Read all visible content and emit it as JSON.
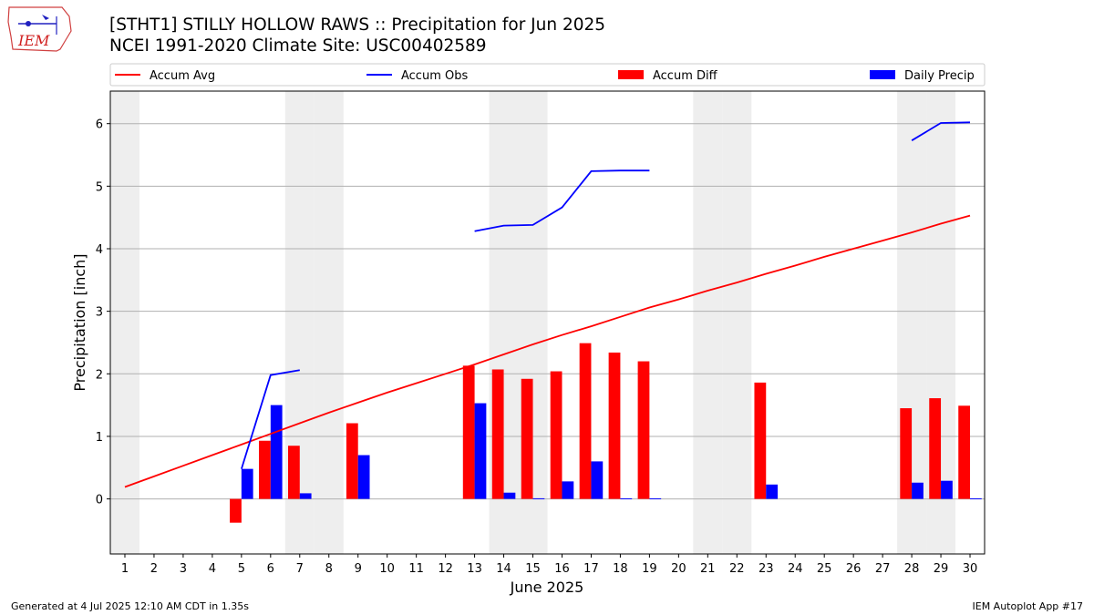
{
  "header": {
    "title": "[STHT1] STILLY HOLLOW RAWS :: Precipitation for Jun 2025",
    "subtitle": "NCEI 1991-2020 Climate Site: USC00402589",
    "logo_text": "IEM"
  },
  "footer": {
    "left": "Generated at 4 Jul 2025 12:10 AM CDT in 1.35s",
    "right": "IEM Autoplot App #17"
  },
  "colors": {
    "avg": "#ff0000",
    "obs": "#0000ff",
    "diff": "#ff0000",
    "daily": "#0000ff",
    "weekend_band": "#eeeeee",
    "grid": "#b0b0b0"
  },
  "chart_data": {
    "type": "bar",
    "title": "[STHT1] STILLY HOLLOW RAWS :: Precipitation for Jun 2025",
    "xlabel": "June 2025",
    "ylabel": "Precipitation [inch]",
    "ylim": [
      -0.88,
      6.52
    ],
    "yticks": [
      0,
      1,
      2,
      3,
      4,
      5,
      6
    ],
    "grid": "horizontal",
    "legend_position": "top",
    "weekend_days": [
      1,
      7,
      8,
      14,
      15,
      21,
      22,
      28,
      29
    ],
    "x": [
      1,
      2,
      3,
      4,
      5,
      6,
      7,
      8,
      9,
      10,
      11,
      12,
      13,
      14,
      15,
      16,
      17,
      18,
      19,
      20,
      21,
      22,
      23,
      24,
      25,
      26,
      27,
      28,
      29,
      30
    ],
    "legend": [
      "Accum Avg",
      "Accum Obs",
      "Accum Diff",
      "Daily Precip"
    ],
    "series": [
      {
        "name": "Accum Avg",
        "kind": "line",
        "values": [
          0.19,
          0.36,
          0.53,
          0.7,
          0.87,
          1.04,
          1.21,
          1.38,
          1.54,
          1.7,
          1.85,
          2.0,
          2.15,
          2.31,
          2.47,
          2.62,
          2.76,
          2.91,
          3.06,
          3.19,
          3.33,
          3.46,
          3.6,
          3.73,
          3.87,
          4.0,
          4.13,
          4.26,
          4.4,
          4.53
        ]
      },
      {
        "name": "Accum Obs",
        "kind": "line",
        "values": [
          null,
          null,
          null,
          null,
          0.48,
          1.98,
          2.06,
          null,
          null,
          null,
          null,
          null,
          4.28,
          4.37,
          4.38,
          4.66,
          5.24,
          5.25,
          5.25,
          null,
          null,
          null,
          null,
          null,
          null,
          null,
          null,
          5.73,
          6.01,
          6.02
        ]
      },
      {
        "name": "Accum Diff",
        "kind": "bar",
        "values": [
          null,
          null,
          null,
          null,
          -0.38,
          0.93,
          0.85,
          null,
          1.21,
          null,
          null,
          null,
          2.13,
          2.07,
          1.92,
          2.04,
          2.49,
          2.34,
          2.2,
          null,
          null,
          null,
          1.86,
          null,
          null,
          null,
          null,
          1.45,
          1.61,
          1.49
        ]
      },
      {
        "name": "Daily Precip",
        "kind": "bar",
        "values": [
          null,
          null,
          null,
          null,
          0.48,
          1.5,
          0.09,
          null,
          0.7,
          null,
          null,
          null,
          1.53,
          0.1,
          0.01,
          0.28,
          0.6,
          0.01,
          0.01,
          null,
          null,
          null,
          0.23,
          null,
          null,
          null,
          null,
          0.26,
          0.29,
          0.01
        ]
      }
    ]
  }
}
